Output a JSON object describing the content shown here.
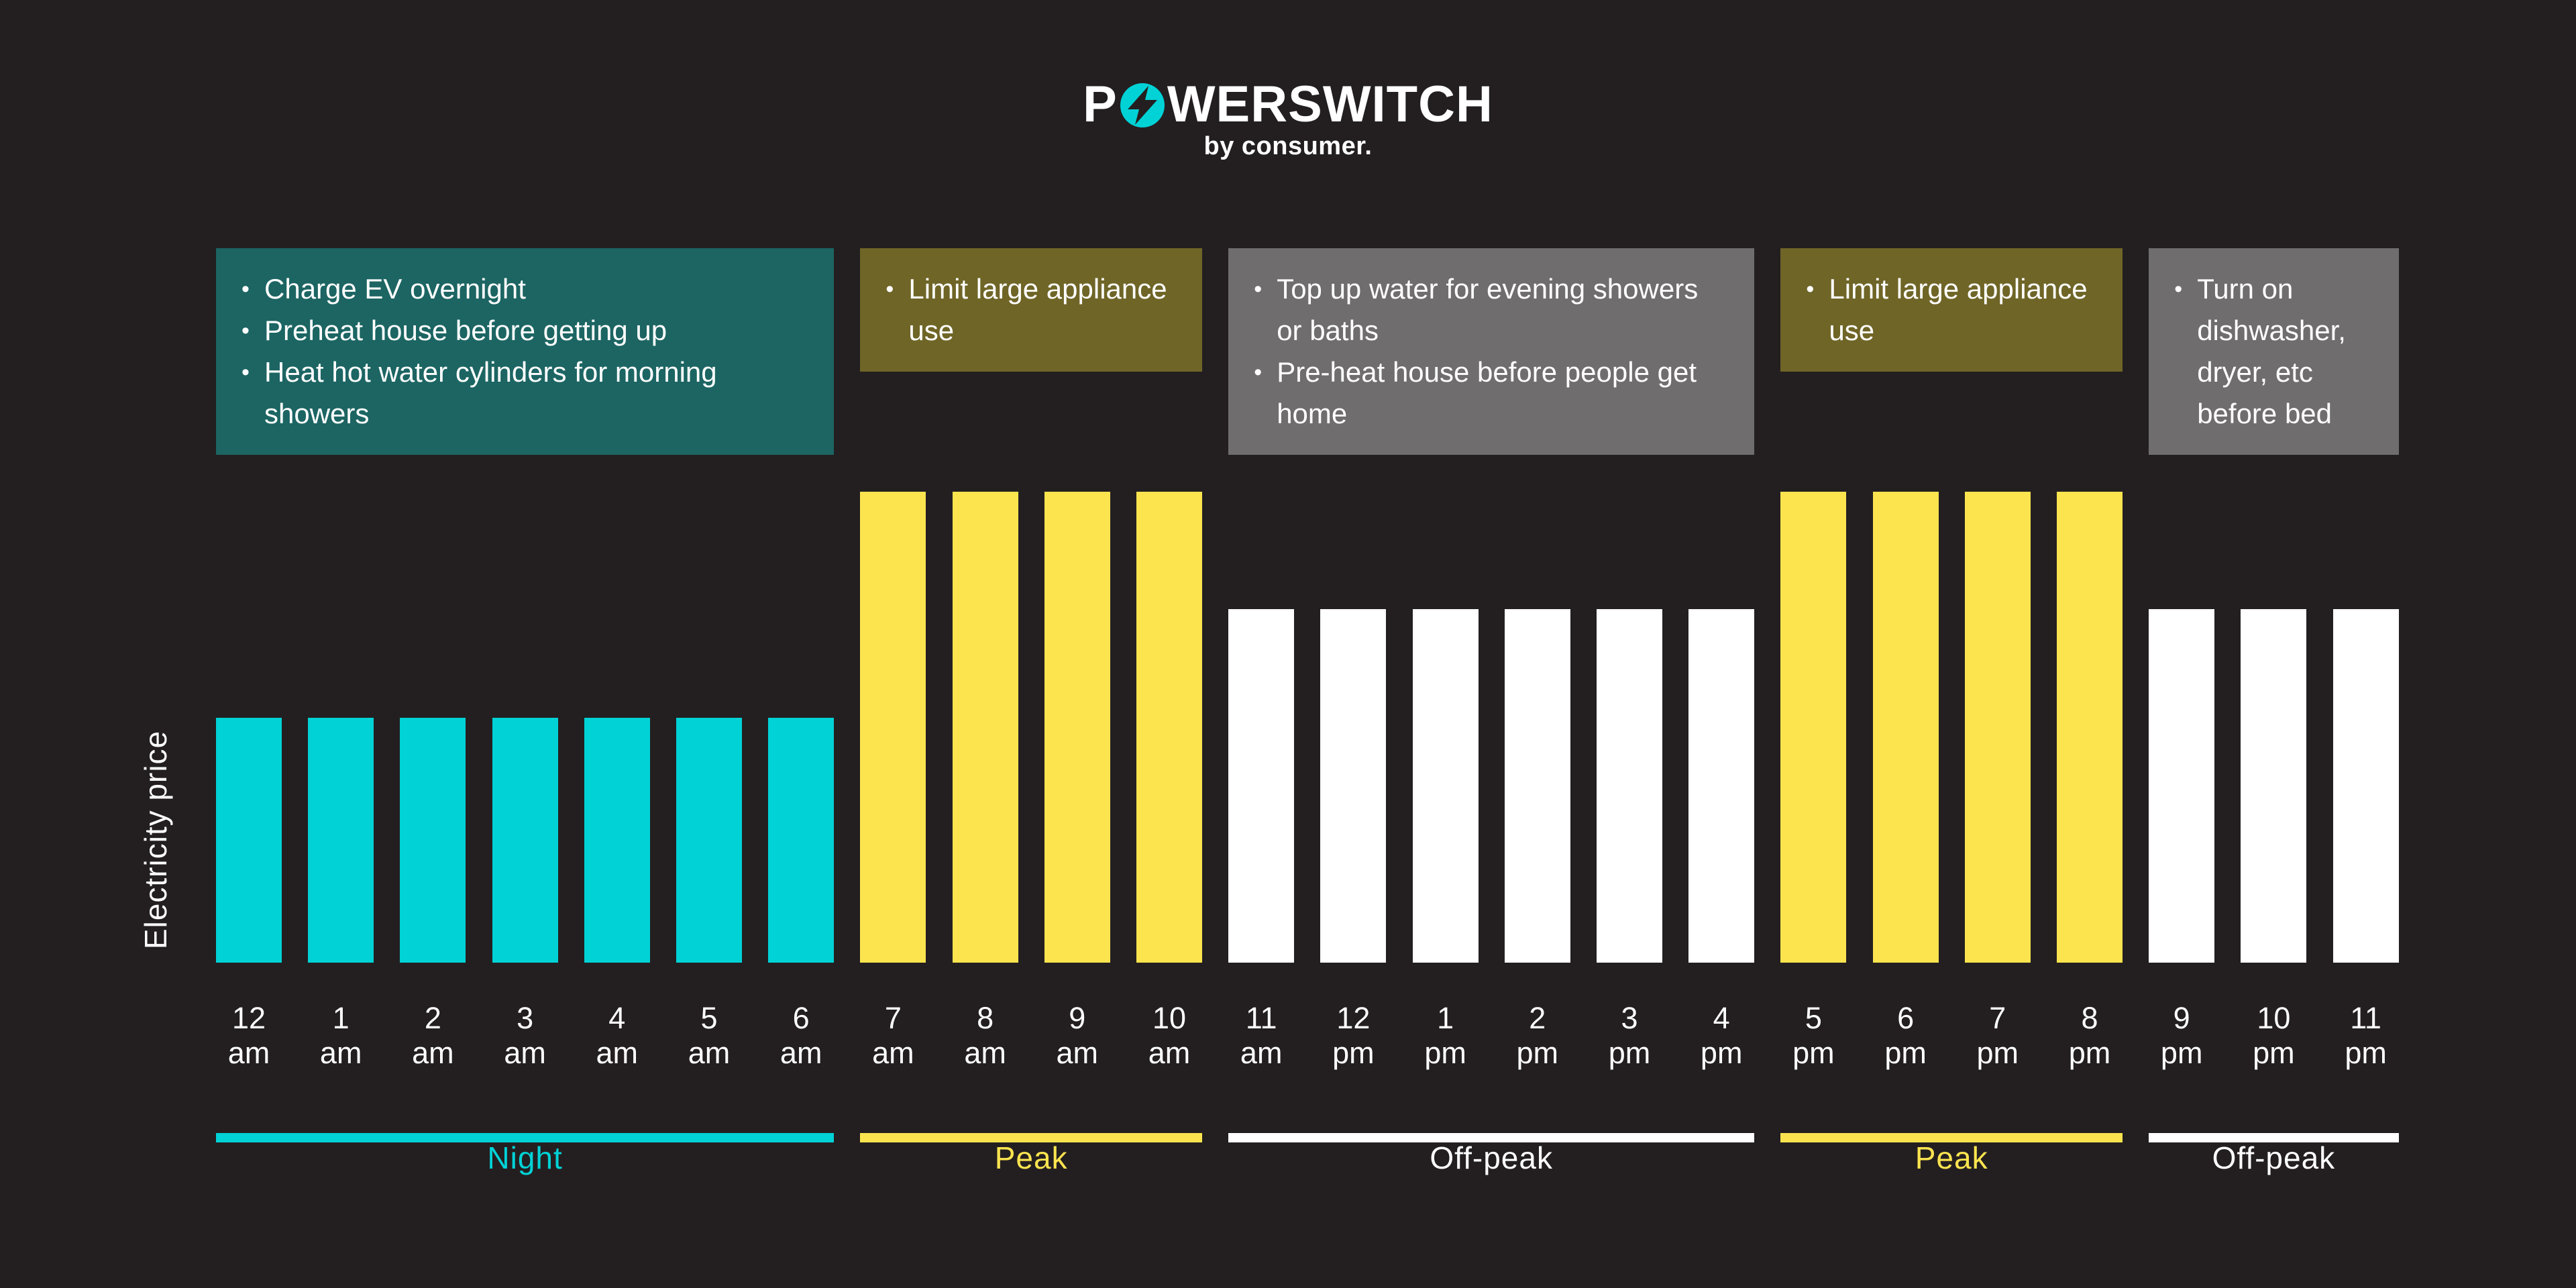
{
  "page": {
    "background": "#231f20"
  },
  "logo": {
    "word_start": "P",
    "word_end": "WERSWITCH",
    "byline": "by consumer.",
    "accent": "#00d2d6"
  },
  "ylabel": "Electricity price",
  "colors": {
    "background": "#231f20",
    "teal": "#00d2d6",
    "yellow": "#fce44f",
    "white": "#ffffff",
    "note_teal": "#1c6563",
    "note_olive": "#6f6527",
    "note_gray": "#706d6e"
  },
  "sections": [
    {
      "id": "night",
      "label": "Night",
      "accent": "#00d2d6",
      "bar_color": "#00d2d6",
      "value": 0.52,
      "hours": [
        "12 am",
        "1 am",
        "2 am",
        "3 am",
        "4 am",
        "5 am",
        "6 am"
      ],
      "note": {
        "bg": "#1c6563",
        "items": [
          "Charge EV overnight",
          "Preheat house before getting up",
          "Heat hot water cylinders for morning showers"
        ]
      }
    },
    {
      "id": "peak-am",
      "label": "Peak",
      "accent": "#fce44f",
      "bar_color": "#fce44f",
      "value": 1,
      "hours": [
        "7 am",
        "8 am",
        "9 am",
        "10 am"
      ],
      "note": {
        "bg": "#6f6527",
        "items": [
          "Limit large appliance use"
        ]
      }
    },
    {
      "id": "off-peak-day",
      "label": "Off-peak",
      "accent": "#ffffff",
      "bar_color": "#ffffff",
      "value": 0.75,
      "hours": [
        "11 am",
        "12 pm",
        "1 pm",
        "2 pm",
        "3 pm",
        "4 pm"
      ],
      "note": {
        "bg": "#706d6e",
        "items": [
          "Top up water for evening showers or baths",
          "Pre-heat house before people get home"
        ]
      }
    },
    {
      "id": "peak-pm",
      "label": "Peak",
      "accent": "#fce44f",
      "bar_color": "#fce44f",
      "value": 1,
      "hours": [
        "5 pm",
        "6 pm",
        "7 pm",
        "8 pm"
      ],
      "note": {
        "bg": "#6f6527",
        "items": [
          "Limit large appliance use"
        ]
      }
    },
    {
      "id": "off-peak-night",
      "label": "Off-peak",
      "accent": "#ffffff",
      "bar_color": "#ffffff",
      "value": 0.75,
      "hours": [
        "9 pm",
        "10 pm",
        "11 pm"
      ],
      "note": {
        "bg": "#706d6e",
        "items": [
          "Turn on dishwasher, dryer, etc before bed"
        ]
      }
    }
  ],
  "chart_data": {
    "type": "bar",
    "title": "",
    "xlabel": "",
    "ylabel": "Electricity price",
    "categories": [
      "12 am",
      "1 am",
      "2 am",
      "3 am",
      "4 am",
      "5 am",
      "6 am",
      "7 am",
      "8 am",
      "9 am",
      "10 am",
      "11 am",
      "12 pm",
      "1 pm",
      "2 pm",
      "3 pm",
      "4 pm",
      "5 pm",
      "6 pm",
      "7 pm",
      "8 pm",
      "9 pm",
      "10 pm",
      "11 pm"
    ],
    "values": [
      0.52,
      0.52,
      0.52,
      0.52,
      0.52,
      0.52,
      0.52,
      1,
      1,
      1,
      1,
      0.75,
      0.75,
      0.75,
      0.75,
      0.75,
      0.75,
      1,
      1,
      1,
      1,
      0.75,
      0.75,
      0.75
    ],
    "value_scale": "relative price level; no numeric axis shown (peak = 1, off-peak = 0.75, night = 0.52)",
    "grid": false,
    "legend": "none",
    "bands": [
      {
        "label": "Night",
        "hours": "12 am - 6 am",
        "color": "#00d2d6"
      },
      {
        "label": "Peak",
        "hours": "7 am - 10 am",
        "color": "#fce44f"
      },
      {
        "label": "Off-peak",
        "hours": "11 am - 4 pm",
        "color": "#ffffff"
      },
      {
        "label": "Peak",
        "hours": "5 pm - 8 pm",
        "color": "#fce44f"
      },
      {
        "label": "Off-peak",
        "hours": "9 pm - 11 pm",
        "color": "#ffffff"
      }
    ]
  }
}
